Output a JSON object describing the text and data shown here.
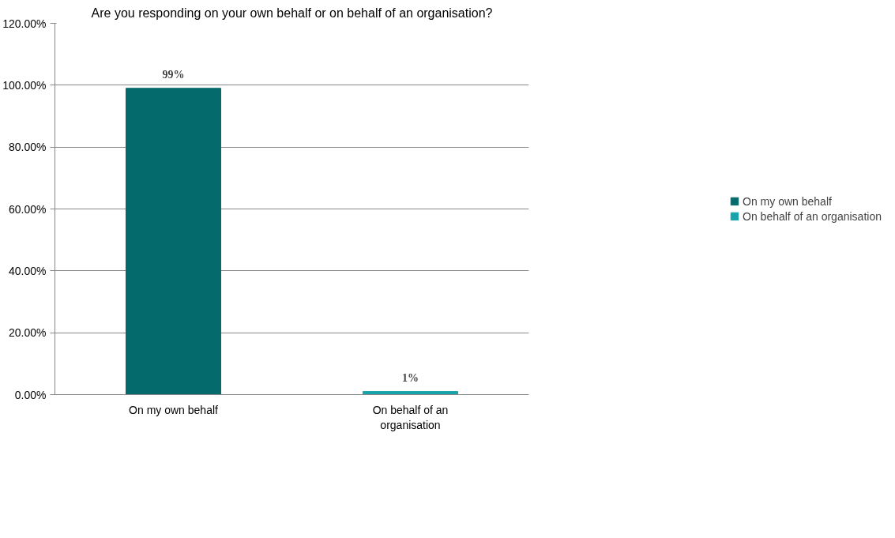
{
  "chart_data": {
    "type": "bar",
    "title": "Are you responding on your own behalf or on behalf of an organisation?",
    "categories": [
      "On my own behalf",
      "On behalf of an organisation"
    ],
    "series": [
      {
        "name": "On my own behalf",
        "color": "#056a6b",
        "values": [
          99,
          null
        ],
        "value_labels": [
          "99%",
          null
        ]
      },
      {
        "name": "On behalf of an organisation",
        "color": "#17a3aa",
        "values": [
          null,
          1
        ],
        "value_labels": [
          null,
          "1%"
        ]
      }
    ],
    "ylim": [
      0,
      120
    ],
    "yticks": [
      {
        "value": 0,
        "label": "0.00%"
      },
      {
        "value": 20,
        "label": "20.00%"
      },
      {
        "value": 40,
        "label": "40.00%"
      },
      {
        "value": 60,
        "label": "60.00%"
      },
      {
        "value": 80,
        "label": "80.00%"
      },
      {
        "value": 100,
        "label": "100.00%"
      },
      {
        "value": 120,
        "label": "120.00%"
      }
    ],
    "grid": "y",
    "legend": "right"
  }
}
